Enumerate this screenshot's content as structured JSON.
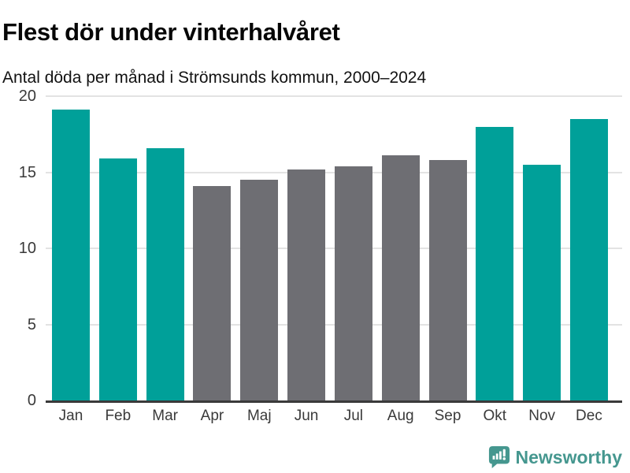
{
  "header": {
    "title": "Flest dör under vinterhalvåret",
    "subtitle": "Antal döda per månad i Strömsunds kommun, 2000–2024"
  },
  "chart_data": {
    "type": "bar",
    "title": "Flest dör under vinterhalvåret",
    "subtitle": "Antal döda per månad i Strömsunds kommun, 2000–2024",
    "categories": [
      "Jan",
      "Feb",
      "Mar",
      "Apr",
      "Maj",
      "Jun",
      "Jul",
      "Aug",
      "Sep",
      "Okt",
      "Nov",
      "Dec"
    ],
    "values": [
      19.1,
      15.9,
      16.6,
      14.1,
      14.5,
      15.2,
      15.4,
      16.1,
      15.8,
      18.0,
      15.5,
      18.5
    ],
    "bar_palette": [
      "winter",
      "winter",
      "winter",
      "summer",
      "summer",
      "summer",
      "summer",
      "summer",
      "summer",
      "winter",
      "winter",
      "winter"
    ],
    "colors": {
      "winter": "#00a099",
      "summer": "#6e6e73"
    },
    "xlabel": "",
    "ylabel": "",
    "ylim": [
      0,
      20
    ],
    "yticks": [
      0,
      5,
      10,
      15,
      20
    ],
    "grid": true,
    "legend": "none"
  },
  "style_colors": {
    "gridline": "#e3e3e3",
    "axis_line": "#3a3a3a",
    "tick_label": "#3a3a3a",
    "brand_teal": "#45978f"
  },
  "footer": {
    "brand": "Newsworthy"
  },
  "icons": {
    "logo": "newsworthy-chart-bubble-icon"
  }
}
